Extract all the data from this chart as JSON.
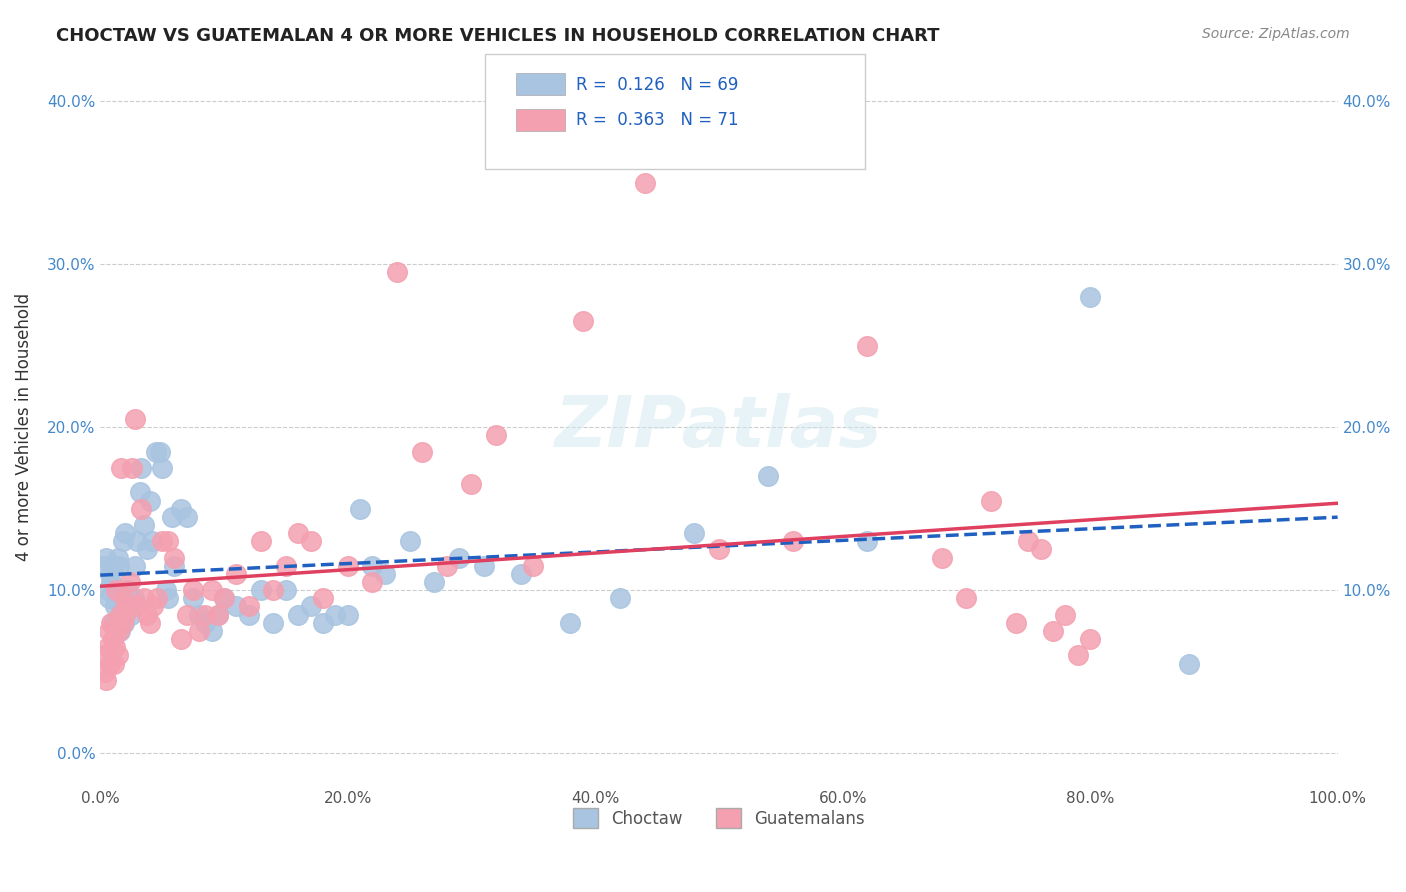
{
  "title": "CHOCTAW VS GUATEMALAN 4 OR MORE VEHICLES IN HOUSEHOLD CORRELATION CHART",
  "source": "Source: ZipAtlas.com",
  "xlabel": "",
  "ylabel": "4 or more Vehicles in Household",
  "xlim": [
    0,
    1.0
  ],
  "ylim": [
    -0.02,
    0.42
  ],
  "xticks": [
    0.0,
    0.2,
    0.4,
    0.6,
    0.8,
    1.0
  ],
  "xticklabels": [
    "0.0%",
    "20.0%",
    "40.0%",
    "60.0%",
    "80.0%",
    "100.0%"
  ],
  "yticks": [
    0.0,
    0.1,
    0.2,
    0.3,
    0.4
  ],
  "yticklabels": [
    "0.0%",
    "10.0%",
    "20.0%",
    "30.0%",
    "40.0%"
  ],
  "right_yticks": [
    0.0,
    0.1,
    0.2,
    0.3,
    0.4
  ],
  "right_yticklabels": [
    "",
    "10.0%",
    "20.0%",
    "30.0%",
    "40.0%"
  ],
  "legend_r1": "R = 0.126",
  "legend_n1": "N = 69",
  "legend_r2": "R = 0.363",
  "legend_n2": "N = 71",
  "choctaw_color": "#a8c4e0",
  "guatemalan_color": "#f4a0b0",
  "choctaw_line_color": "#2060c0",
  "guatemalan_line_color": "#e04060",
  "choctaw_line_style": "--",
  "guatemalan_line_style": "-",
  "watermark": "ZIPatlas",
  "choctaw_x": [
    0.003,
    0.005,
    0.006,
    0.007,
    0.008,
    0.009,
    0.01,
    0.011,
    0.012,
    0.013,
    0.014,
    0.015,
    0.016,
    0.017,
    0.018,
    0.019,
    0.02,
    0.022,
    0.023,
    0.025,
    0.027,
    0.028,
    0.03,
    0.032,
    0.033,
    0.035,
    0.038,
    0.04,
    0.042,
    0.045,
    0.048,
    0.05,
    0.053,
    0.055,
    0.058,
    0.06,
    0.065,
    0.07,
    0.075,
    0.08,
    0.085,
    0.09,
    0.095,
    0.1,
    0.11,
    0.12,
    0.13,
    0.14,
    0.15,
    0.16,
    0.17,
    0.18,
    0.19,
    0.2,
    0.21,
    0.22,
    0.23,
    0.25,
    0.27,
    0.29,
    0.31,
    0.34,
    0.38,
    0.42,
    0.48,
    0.54,
    0.62,
    0.8,
    0.88
  ],
  "choctaw_y": [
    0.115,
    0.12,
    0.1,
    0.095,
    0.11,
    0.105,
    0.08,
    0.115,
    0.09,
    0.1,
    0.12,
    0.115,
    0.075,
    0.09,
    0.13,
    0.08,
    0.135,
    0.1,
    0.095,
    0.085,
    0.095,
    0.115,
    0.13,
    0.16,
    0.175,
    0.14,
    0.125,
    0.155,
    0.13,
    0.185,
    0.185,
    0.175,
    0.1,
    0.095,
    0.145,
    0.115,
    0.15,
    0.145,
    0.095,
    0.085,
    0.08,
    0.075,
    0.085,
    0.095,
    0.09,
    0.085,
    0.1,
    0.08,
    0.1,
    0.085,
    0.09,
    0.08,
    0.085,
    0.085,
    0.15,
    0.115,
    0.11,
    0.13,
    0.105,
    0.12,
    0.115,
    0.11,
    0.08,
    0.095,
    0.135,
    0.17,
    0.13,
    0.28,
    0.055
  ],
  "guatemalan_x": [
    0.003,
    0.004,
    0.005,
    0.006,
    0.007,
    0.008,
    0.009,
    0.01,
    0.011,
    0.012,
    0.013,
    0.014,
    0.015,
    0.016,
    0.017,
    0.018,
    0.019,
    0.02,
    0.022,
    0.024,
    0.026,
    0.028,
    0.03,
    0.033,
    0.035,
    0.038,
    0.04,
    0.043,
    0.046,
    0.05,
    0.055,
    0.06,
    0.065,
    0.07,
    0.075,
    0.08,
    0.085,
    0.09,
    0.095,
    0.1,
    0.11,
    0.12,
    0.13,
    0.14,
    0.15,
    0.16,
    0.17,
    0.18,
    0.2,
    0.22,
    0.24,
    0.26,
    0.28,
    0.3,
    0.32,
    0.35,
    0.39,
    0.44,
    0.5,
    0.56,
    0.62,
    0.68,
    0.7,
    0.72,
    0.74,
    0.75,
    0.76,
    0.77,
    0.78,
    0.79,
    0.8
  ],
  "guatemalan_y": [
    0.06,
    0.05,
    0.045,
    0.065,
    0.075,
    0.055,
    0.08,
    0.07,
    0.055,
    0.065,
    0.1,
    0.06,
    0.075,
    0.085,
    0.175,
    0.08,
    0.095,
    0.085,
    0.09,
    0.105,
    0.175,
    0.205,
    0.09,
    0.15,
    0.095,
    0.085,
    0.08,
    0.09,
    0.095,
    0.13,
    0.13,
    0.12,
    0.07,
    0.085,
    0.1,
    0.075,
    0.085,
    0.1,
    0.085,
    0.095,
    0.11,
    0.09,
    0.13,
    0.1,
    0.115,
    0.135,
    0.13,
    0.095,
    0.115,
    0.105,
    0.295,
    0.185,
    0.115,
    0.165,
    0.195,
    0.115,
    0.265,
    0.35,
    0.125,
    0.13,
    0.25,
    0.12,
    0.095,
    0.155,
    0.08,
    0.13,
    0.125,
    0.075,
    0.085,
    0.06,
    0.07
  ]
}
